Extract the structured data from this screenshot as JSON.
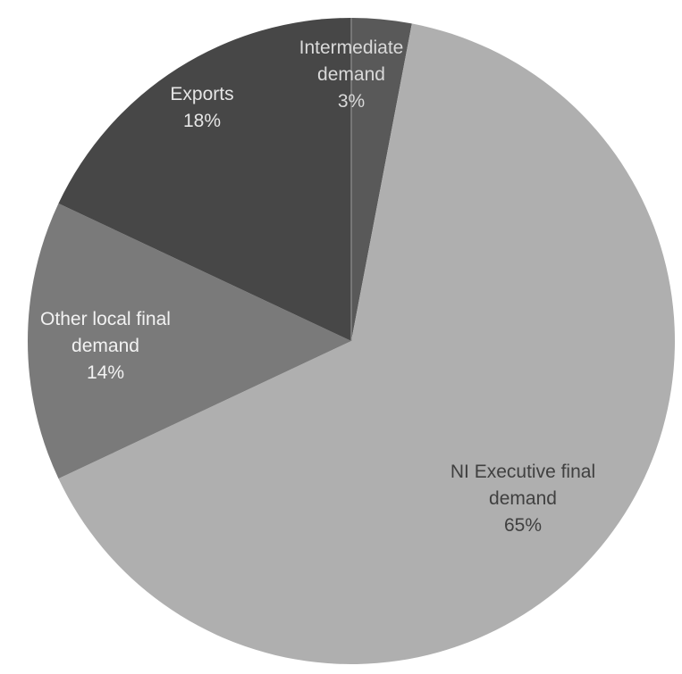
{
  "chart_data": {
    "type": "pie",
    "title": "",
    "slices": [
      {
        "label_lines": [
          "Intermediate",
          "demand"
        ],
        "percent_label": "3%",
        "value": 3,
        "color": "#595959",
        "text_color": "#d9d9d9"
      },
      {
        "label_lines": [
          "NI Executive final",
          "demand"
        ],
        "percent_label": "65%",
        "value": 65,
        "color": "#afafaf",
        "text_color": "#404040"
      },
      {
        "label_lines": [
          "Other local final",
          "demand"
        ],
        "percent_label": "14%",
        "value": 14,
        "color": "#7a7a7a",
        "text_color": "#f2f2f2"
      },
      {
        "label_lines": [
          "Exports"
        ],
        "percent_label": "18%",
        "value": 18,
        "color": "#474747",
        "text_color": "#e6e6e6"
      }
    ],
    "start_angle_degrees": 0,
    "direction": "clockwise",
    "legend": "none",
    "label_position": "inside"
  }
}
